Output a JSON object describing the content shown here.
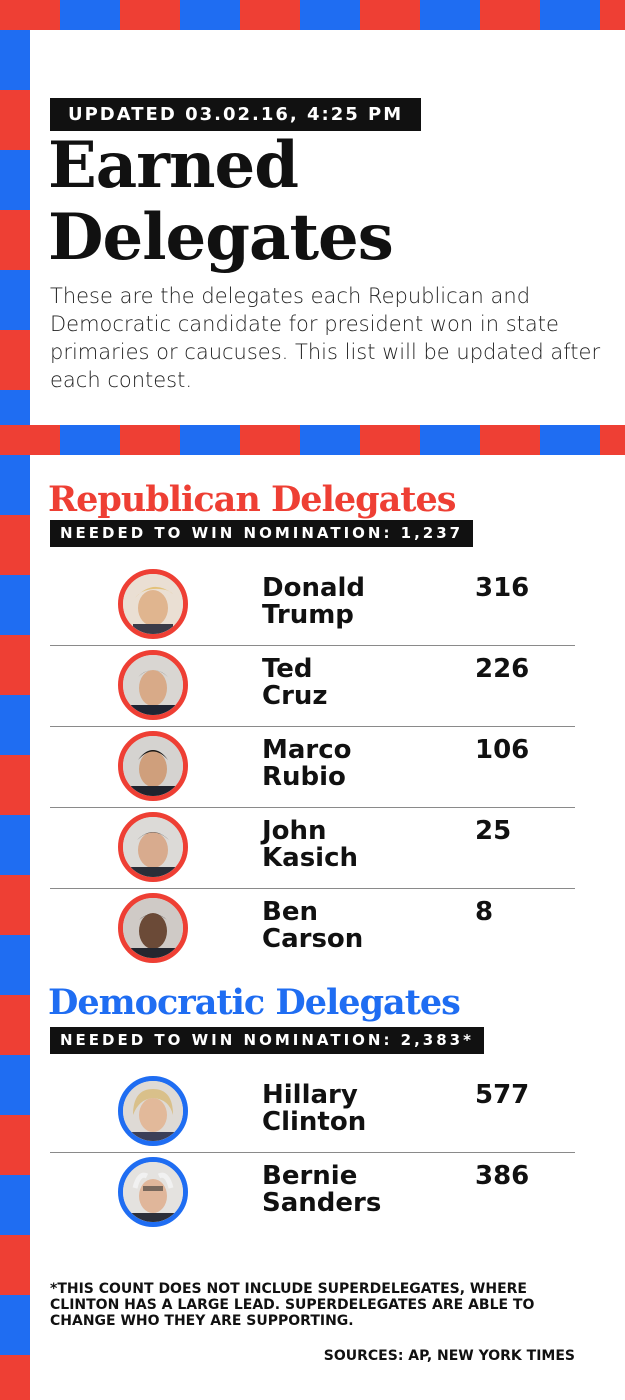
{
  "header": {
    "updated_label": "UPDATED 03.02.16, 4:25 PM",
    "title_line1": "Earned",
    "title_line2": "Delegates",
    "intro": "These are the delegates each Republican and Democratic candidate for president won in state primaries or caucuses. This list will be updated after each contest."
  },
  "republican": {
    "heading": "Republican Delegates",
    "needed_label": "NEEDED TO WIN NOMINATION: 1,237",
    "candidates": [
      {
        "first": "Donald",
        "last": "Trump",
        "delegates": "316"
      },
      {
        "first": "Ted",
        "last": "Cruz",
        "delegates": "226"
      },
      {
        "first": "Marco",
        "last": "Rubio",
        "delegates": "106"
      },
      {
        "first": "John",
        "last": "Kasich",
        "delegates": "25"
      },
      {
        "first": "Ben",
        "last": "Carson",
        "delegates": "8"
      }
    ]
  },
  "democratic": {
    "heading": "Democratic Delegates",
    "needed_label": "NEEDED TO WIN NOMINATION: 2,383*",
    "candidates": [
      {
        "first": "Hillary",
        "last": "Clinton",
        "delegates": "577"
      },
      {
        "first": "Bernie",
        "last": "Sanders",
        "delegates": "386"
      }
    ]
  },
  "footnote": "*THIS COUNT DOES NOT INCLUDE SUPERDELEGATES, WHERE CLINTON HAS A LARGE LEAD. SUPERDELEGATES ARE ABLE TO CHANGE WHO THEY ARE SUPPORTING.",
  "sources": "SOURCES: AP, NEW YORK TIMES",
  "colors": {
    "republican_red": "#ee3f34",
    "democratic_blue": "#1f6df2",
    "ink": "#111111"
  }
}
